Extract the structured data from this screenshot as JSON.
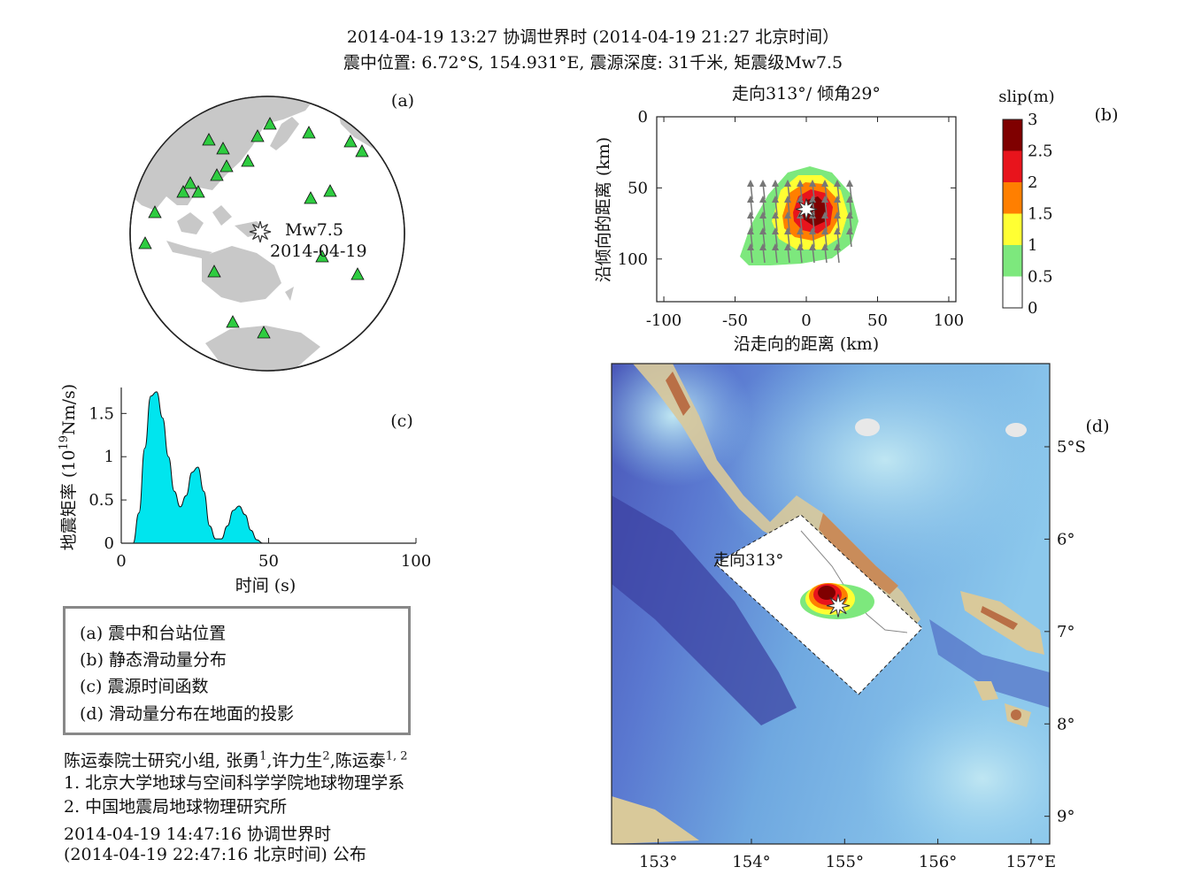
{
  "header": {
    "line1": "2014-04-19 13:27 协调世界时 (2014-04-19 21:27 北京时间）",
    "line2": "震中位置: 6.72°S, 154.931°E, 震源深度: 31千米, 矩震级Mw7.5"
  },
  "panel_a": {
    "label": "(a)",
    "event_mag": "Mw7.5",
    "event_date": "2014-04-19",
    "stations_count": 20,
    "colors": {
      "station": "#2ecc40",
      "land": "#c8c8c8"
    }
  },
  "panel_b": {
    "label": "(b)",
    "title": "走向313°/ 倾角29°",
    "xlabel": "沿走向的距离 (km)",
    "ylabel": "沿倾向的距离 (km)",
    "xticks": [
      "-100",
      "-50",
      "0",
      "50",
      "100"
    ],
    "yticks": [
      "0",
      "50",
      "100"
    ],
    "colorbar_title": "slip(m)",
    "colorbar_ticks": [
      "3",
      "2.5",
      "2",
      "1.5",
      "1",
      "0.5",
      "0"
    ],
    "colorbar_colors": [
      "#7f0000",
      "#e8141c",
      "#ff7f00",
      "#ffff33",
      "#7de87d",
      "#ffffff"
    ]
  },
  "panel_c": {
    "label": "(c)",
    "xlabel": "时间 (s)",
    "ylabel_main": "地震矩率 (10",
    "ylabel_sup": "19",
    "ylabel_tail": "Nm/s)",
    "xticks": [
      "0",
      "50",
      "100"
    ],
    "yticks": [
      "0",
      "0.5",
      "1",
      "1.5"
    ],
    "fill_color": "#00e5ee"
  },
  "panel_d": {
    "label": "(d)",
    "strike_label": "走向313°",
    "xticks": [
      "153°",
      "154°",
      "155°",
      "156°",
      "157°E"
    ],
    "yticks": [
      "5°S",
      "6°",
      "7°",
      "8°",
      "9°"
    ]
  },
  "legend": {
    "items": [
      "(a) 震中和台站位置",
      "(b) 静态滑动量分布",
      "(c) 震源时间函数",
      "(d) 滑动量分布在地面的投影"
    ]
  },
  "credits": {
    "group": "陈运泰院士研究小组, 张勇",
    "sup1": "1",
    "name2": ",许力生",
    "sup2": "2",
    "name3": ",陈运泰",
    "sup3": "1, 2",
    "aff1": "1. 北京大学地球与空间科学学院地球物理学系",
    "aff2": "2. 中国地震局地球物理研究所",
    "time1": "2014-04-19 14:47:16 协调世界时",
    "time2": "(2014-04-19 22:47:16 北京时间)  公布"
  },
  "chart_data": [
    {
      "type": "scatter",
      "panel": "a",
      "note_values": "station map (orthographic projection); event epicenter marked with star",
      "event": {
        "lat": -6.72,
        "lon": 154.931
      }
    },
    {
      "type": "heatmap",
      "panel": "b",
      "xlim": [
        -105,
        105
      ],
      "ylim": [
        130,
        0
      ],
      "colorbar_range": [
        0,
        3
      ],
      "peak_slip_m": 3,
      "peak_location_km": [
        5,
        68
      ],
      "hypocenter_km": [
        0,
        65
      ]
    },
    {
      "type": "area",
      "panel": "c",
      "xlim": [
        0,
        100
      ],
      "ylim": [
        0,
        1.8
      ],
      "x": [
        4,
        6,
        8,
        10,
        12,
        14,
        16,
        18,
        20,
        22,
        24,
        26,
        28,
        30,
        32,
        34,
        36,
        38,
        40,
        42,
        44,
        46,
        48
      ],
      "y": [
        0,
        0.35,
        1.1,
        1.7,
        1.75,
        1.45,
        1.0,
        0.6,
        0.42,
        0.55,
        0.82,
        0.88,
        0.6,
        0.2,
        0.05,
        0.05,
        0.2,
        0.38,
        0.43,
        0.33,
        0.15,
        0.04,
        0
      ]
    },
    {
      "type": "heatmap",
      "panel": "d",
      "xlim": [
        152.5,
        157.2
      ],
      "ylim": [
        -9.3,
        -4.1
      ],
      "epicenter": {
        "lon": 154.931,
        "lat": -6.72
      }
    }
  ]
}
